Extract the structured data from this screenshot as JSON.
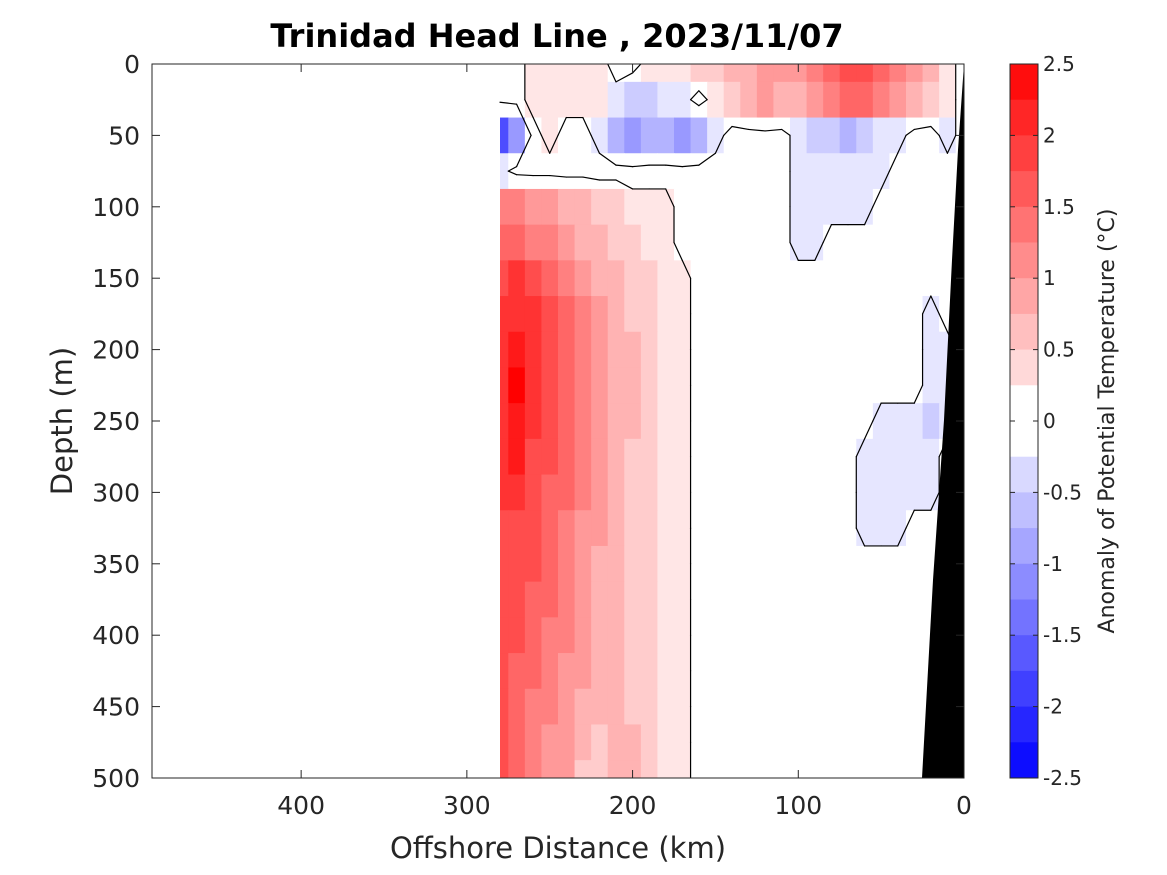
{
  "chart_data": {
    "type": "heatmap",
    "title": "Trinidad Head Line , 2023/11/07",
    "xlabel": "Offshore Distance (km)",
    "ylabel": "Depth (m)",
    "x_reversed": true,
    "xlim": [
      0,
      490
    ],
    "ylim": [
      0,
      500
    ],
    "y_reversed": true,
    "x_ticks": [
      400,
      300,
      200,
      100,
      0
    ],
    "x_tick_labels": [
      "400",
      "300",
      "200",
      "100",
      "0"
    ],
    "y_ticks": [
      0,
      50,
      100,
      150,
      200,
      250,
      300,
      350,
      400,
      450,
      500
    ],
    "y_tick_labels": [
      "0",
      "50",
      "100",
      "150",
      "200",
      "250",
      "300",
      "350",
      "400",
      "450",
      "500"
    ],
    "colorbar": {
      "label": "Anomaly of Potential Temperature (°C)",
      "range": [
        -2.5,
        2.5
      ],
      "step": 0.25,
      "ticks": [
        2.5,
        2,
        1.5,
        1,
        0.5,
        0,
        -0.5,
        -1,
        -1.5,
        -2,
        -2.5
      ],
      "tick_labels": [
        "2.5",
        "2",
        "1.5",
        "1",
        "0.5",
        "0",
        "-0.5",
        "-1",
        "-1.5",
        "-2",
        "-2.5"
      ]
    },
    "data_extent_km": [
      0,
      280
    ],
    "columns_km": [
      280,
      270,
      260,
      250,
      240,
      230,
      220,
      210,
      200,
      190,
      180,
      170,
      160,
      150,
      140,
      130,
      120,
      110,
      100,
      90,
      80,
      70,
      60,
      50,
      40,
      30,
      20,
      10,
      0
    ],
    "depths_m": [
      0,
      25,
      50,
      75,
      100,
      125,
      150,
      175,
      200,
      225,
      250,
      275,
      300,
      325,
      350,
      375,
      400,
      425,
      450,
      475,
      500
    ],
    "anomaly_values_C": [
      [
        0.0,
        0.0,
        0.25,
        0.25,
        0.25,
        0.25,
        0.25,
        0.0,
        0.0,
        0.25,
        0.25,
        0.25,
        0.5,
        0.5,
        0.75,
        0.75,
        1.0,
        1.0,
        1.0,
        1.25,
        1.5,
        1.75,
        1.75,
        1.5,
        1.25,
        1.0,
        0.75,
        0.25,
        0.0
      ],
      [
        0.0,
        0.0,
        0.25,
        0.25,
        0.25,
        0.25,
        0.25,
        -0.25,
        -0.5,
        -0.5,
        -0.25,
        -0.25,
        0.0,
        0.25,
        0.5,
        0.75,
        1.0,
        0.75,
        0.75,
        1.0,
        1.25,
        1.5,
        1.5,
        1.25,
        1.0,
        0.75,
        0.5,
        0.25,
        0.0
      ],
      [
        -1.75,
        -1.0,
        0.0,
        0.25,
        0.0,
        0.0,
        -0.25,
        -0.75,
        -1.0,
        -0.75,
        -0.75,
        -1.0,
        -0.75,
        -0.25,
        0.0,
        0.0,
        0.0,
        0.0,
        -0.25,
        -0.5,
        -0.5,
        -0.75,
        -0.5,
        -0.25,
        -0.25,
        0.0,
        0.0,
        -0.25,
        0.0
      ],
      [
        -0.25,
        0.0,
        0.0,
        0.0,
        0.0,
        0.0,
        0.0,
        0.0,
        0.0,
        0.0,
        0.0,
        0.0,
        0.0,
        0.0,
        0.0,
        0.0,
        0.0,
        0.0,
        -0.25,
        -0.25,
        -0.25,
        -0.25,
        -0.25,
        -0.25,
        0.0,
        0.0,
        0.0,
        0.0,
        0.0
      ],
      [
        1.25,
        1.25,
        1.0,
        1.0,
        0.75,
        0.75,
        0.5,
        0.5,
        0.25,
        0.25,
        0.25,
        0.0,
        0.0,
        0.0,
        0.0,
        0.0,
        0.0,
        0.0,
        -0.25,
        -0.25,
        -0.25,
        -0.25,
        -0.25,
        0.0,
        0.0,
        0.0,
        0.0,
        0.0,
        0.0
      ],
      [
        1.5,
        1.5,
        1.25,
        1.25,
        1.0,
        0.75,
        0.75,
        0.5,
        0.5,
        0.25,
        0.25,
        0.0,
        0.0,
        0.0,
        0.0,
        0.0,
        0.0,
        0.0,
        -0.25,
        -0.25,
        0.0,
        0.0,
        0.0,
        0.0,
        0.0,
        0.0,
        0.0,
        0.0,
        0.0
      ],
      [
        1.75,
        2.0,
        1.75,
        1.5,
        1.25,
        1.0,
        0.75,
        0.75,
        0.5,
        0.5,
        0.25,
        0.25,
        0.0,
        0.0,
        0.0,
        0.0,
        0.0,
        0.0,
        0.0,
        0.0,
        0.0,
        0.0,
        0.0,
        0.0,
        0.0,
        0.0,
        0.0,
        0.0,
        0.0
      ],
      [
        2.0,
        2.0,
        2.0,
        1.75,
        1.5,
        1.25,
        1.0,
        0.75,
        0.5,
        0.5,
        0.25,
        0.25,
        0.0,
        0.0,
        0.0,
        0.0,
        0.0,
        0.0,
        0.0,
        0.0,
        0.0,
        0.0,
        0.0,
        0.0,
        0.0,
        0.0,
        -0.25,
        0.0,
        0.0
      ],
      [
        2.0,
        2.25,
        2.0,
        1.75,
        1.5,
        1.25,
        1.0,
        0.75,
        0.75,
        0.5,
        0.25,
        0.25,
        0.0,
        0.0,
        0.0,
        0.0,
        0.0,
        0.0,
        0.0,
        0.0,
        0.0,
        0.0,
        0.0,
        0.0,
        0.0,
        0.0,
        -0.25,
        -0.25,
        0.0
      ],
      [
        2.0,
        2.5,
        2.0,
        1.75,
        1.5,
        1.25,
        1.0,
        0.75,
        0.75,
        0.5,
        0.25,
        0.25,
        0.0,
        0.0,
        0.0,
        0.0,
        0.0,
        0.0,
        0.0,
        0.0,
        0.0,
        0.0,
        0.0,
        0.0,
        0.0,
        0.0,
        -0.25,
        -0.25,
        0.0
      ],
      [
        2.0,
        2.25,
        2.0,
        1.75,
        1.5,
        1.25,
        1.0,
        0.75,
        0.75,
        0.5,
        0.25,
        0.25,
        0.0,
        0.0,
        0.0,
        0.0,
        0.0,
        0.0,
        0.0,
        0.0,
        0.0,
        0.0,
        0.0,
        -0.25,
        -0.25,
        -0.25,
        -0.5,
        -0.25,
        0.0
      ],
      [
        2.0,
        2.25,
        1.75,
        1.75,
        1.5,
        1.25,
        1.0,
        0.75,
        0.5,
        0.5,
        0.25,
        0.25,
        0.0,
        0.0,
        0.0,
        0.0,
        0.0,
        0.0,
        0.0,
        0.0,
        0.0,
        0.0,
        -0.25,
        -0.25,
        -0.25,
        -0.25,
        -0.25,
        0.0,
        0.0
      ],
      [
        2.0,
        2.0,
        1.75,
        1.5,
        1.5,
        1.25,
        1.0,
        0.75,
        0.5,
        0.5,
        0.25,
        0.25,
        0.0,
        0.0,
        0.0,
        0.0,
        0.0,
        0.0,
        0.0,
        0.0,
        0.0,
        0.0,
        -0.25,
        -0.25,
        -0.25,
        -0.25,
        -0.25,
        0.0,
        0.0
      ],
      [
        1.75,
        1.75,
        1.75,
        1.5,
        1.25,
        1.0,
        1.0,
        0.75,
        0.5,
        0.5,
        0.25,
        0.25,
        0.0,
        0.0,
        0.0,
        0.0,
        0.0,
        0.0,
        0.0,
        0.0,
        0.0,
        0.0,
        -0.25,
        -0.25,
        -0.25,
        0.0,
        0.0,
        0.0,
        0.0
      ],
      [
        1.75,
        1.75,
        1.75,
        1.5,
        1.25,
        1.0,
        0.75,
        0.75,
        0.5,
        0.5,
        0.25,
        0.25,
        0.0,
        0.0,
        0.0,
        0.0,
        0.0,
        0.0,
        0.0,
        0.0,
        0.0,
        0.0,
        0.0,
        0.0,
        0.0,
        0.0,
        0.0,
        0.0,
        0.0
      ],
      [
        1.75,
        1.75,
        1.5,
        1.5,
        1.25,
        1.0,
        0.75,
        0.75,
        0.5,
        0.5,
        0.25,
        0.25,
        0.0,
        0.0,
        0.0,
        0.0,
        0.0,
        0.0,
        0.0,
        0.0,
        0.0,
        0.0,
        0.0,
        0.0,
        0.0,
        0.0,
        0.0,
        0.0,
        0.0
      ],
      [
        1.75,
        1.75,
        1.5,
        1.25,
        1.25,
        1.0,
        0.75,
        0.75,
        0.5,
        0.5,
        0.25,
        0.25,
        0.0,
        0.0,
        0.0,
        0.0,
        0.0,
        0.0,
        0.0,
        0.0,
        0.0,
        0.0,
        0.0,
        0.0,
        0.0,
        0.0,
        0.0,
        0.0,
        0.0
      ],
      [
        1.75,
        1.5,
        1.5,
        1.25,
        1.0,
        1.0,
        0.75,
        0.75,
        0.5,
        0.5,
        0.25,
        0.25,
        0.0,
        0.0,
        0.0,
        0.0,
        0.0,
        0.0,
        0.0,
        0.0,
        0.0,
        0.0,
        0.0,
        0.0,
        0.0,
        0.0,
        0.0,
        0.0,
        0.0
      ],
      [
        1.75,
        1.5,
        1.25,
        1.25,
        1.0,
        0.75,
        0.75,
        0.75,
        0.5,
        0.5,
        0.25,
        0.25,
        0.0,
        0.0,
        0.0,
        0.0,
        0.0,
        0.0,
        0.0,
        0.0,
        0.0,
        0.0,
        0.0,
        0.0,
        0.0,
        0.0,
        0.0,
        0.0,
        0.0
      ],
      [
        1.75,
        1.5,
        1.25,
        1.0,
        1.0,
        0.75,
        0.5,
        0.75,
        0.75,
        0.5,
        0.25,
        0.25,
        0.0,
        0.0,
        0.0,
        0.0,
        0.0,
        0.0,
        0.0,
        0.0,
        0.0,
        0.0,
        0.0,
        0.0,
        0.0,
        0.0,
        0.0,
        0.0,
        0.0
      ],
      [
        1.75,
        1.5,
        1.25,
        1.0,
        1.0,
        0.5,
        0.5,
        0.75,
        0.75,
        0.5,
        0.25,
        0.25,
        0.0,
        0.0,
        0.0,
        0.0,
        0.0,
        0.0,
        0.0,
        0.0,
        0.0,
        0.0,
        0.0,
        0.0,
        0.0,
        0.0,
        0.0,
        0.0,
        0.0
      ]
    ],
    "zero_contour_color": "#000000",
    "bathymetry_color": "#000000",
    "colors": {
      "positive_max": "#ff0000",
      "negative_max": "#0000ff",
      "neutral": "#ffffff"
    }
  }
}
